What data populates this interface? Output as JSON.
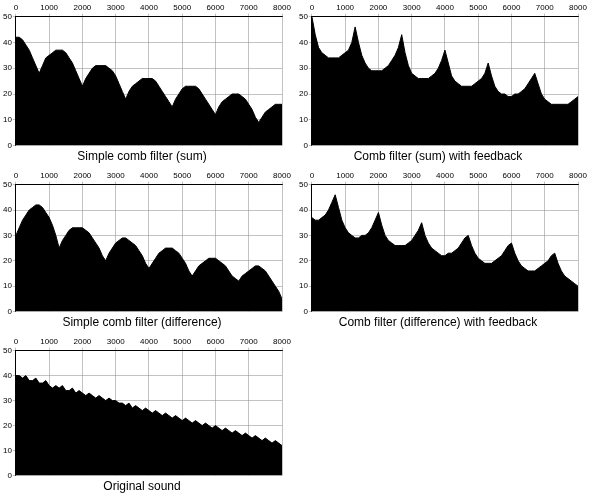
{
  "chart_data": [
    {
      "type": "area",
      "title": "Simple comb filter (sum)",
      "color": "#000000",
      "grid": true,
      "xlim": [
        0,
        8000
      ],
      "xticks": [
        0,
        1000,
        2000,
        3000,
        4000,
        5000,
        6000,
        7000,
        8000
      ],
      "ylim": [
        0,
        50
      ],
      "yticks": [
        0,
        10,
        20,
        30,
        40,
        50
      ],
      "x": [
        0,
        100,
        200,
        300,
        400,
        500,
        600,
        700,
        800,
        900,
        1000,
        1100,
        1200,
        1300,
        1400,
        1500,
        1600,
        1700,
        1800,
        1900,
        2000,
        2100,
        2200,
        2300,
        2400,
        2500,
        2600,
        2700,
        2800,
        2900,
        3000,
        3100,
        3200,
        3300,
        3400,
        3500,
        3600,
        3700,
        3800,
        3900,
        4000,
        4100,
        4200,
        4300,
        4400,
        4500,
        4600,
        4700,
        4800,
        4900,
        5000,
        5100,
        5200,
        5300,
        5400,
        5500,
        5600,
        5700,
        5800,
        5900,
        6000,
        6100,
        6200,
        6300,
        6400,
        6500,
        6600,
        6700,
        6800,
        6900,
        7000,
        7100,
        7200,
        7300,
        7400,
        7500,
        7600,
        7700,
        7800,
        7900,
        8000
      ],
      "values": [
        42,
        42,
        41,
        39,
        37,
        34,
        31,
        28,
        31,
        34,
        35,
        36,
        37,
        37,
        37,
        36,
        34,
        32,
        29,
        26,
        23,
        26,
        28,
        30,
        31,
        31,
        31,
        31,
        30,
        29,
        27,
        24,
        21,
        18,
        21,
        23,
        24,
        25,
        26,
        26,
        26,
        26,
        25,
        23,
        21,
        19,
        17,
        15,
        18,
        20,
        22,
        23,
        23,
        23,
        23,
        22,
        20,
        18,
        16,
        14,
        12,
        15,
        17,
        18,
        19,
        20,
        20,
        20,
        19,
        18,
        16,
        14,
        11,
        9,
        11,
        13,
        14,
        15,
        16,
        16,
        16
      ]
    },
    {
      "type": "area",
      "title": "Comb filter (sum) with feedback",
      "color": "#000000",
      "grid": true,
      "xlim": [
        0,
        8000
      ],
      "xticks": [
        0,
        1000,
        2000,
        3000,
        4000,
        5000,
        6000,
        7000,
        8000
      ],
      "ylim": [
        0,
        50
      ],
      "yticks": [
        0,
        10,
        20,
        30,
        40,
        50
      ],
      "x": [
        0,
        100,
        200,
        300,
        400,
        500,
        600,
        700,
        800,
        900,
        1000,
        1100,
        1200,
        1300,
        1400,
        1500,
        1600,
        1700,
        1800,
        1900,
        2000,
        2100,
        2200,
        2300,
        2400,
        2500,
        2600,
        2700,
        2800,
        2900,
        3000,
        3100,
        3200,
        3300,
        3400,
        3500,
        3600,
        3700,
        3800,
        3900,
        4000,
        4100,
        4200,
        4300,
        4400,
        4500,
        4600,
        4700,
        4800,
        4900,
        5000,
        5100,
        5200,
        5300,
        5400,
        5500,
        5600,
        5700,
        5800,
        5900,
        6000,
        6100,
        6200,
        6300,
        6400,
        6500,
        6600,
        6700,
        6800,
        6900,
        7000,
        7100,
        7200,
        7300,
        7400,
        7500,
        7600,
        7700,
        7800,
        7900,
        8000
      ],
      "values": [
        50,
        43,
        38,
        36,
        35,
        34,
        34,
        34,
        34,
        35,
        36,
        37,
        40,
        46,
        40,
        35,
        32,
        30,
        29,
        29,
        29,
        29,
        30,
        31,
        33,
        35,
        38,
        43,
        36,
        31,
        28,
        27,
        26,
        26,
        26,
        26,
        27,
        28,
        30,
        33,
        37,
        32,
        27,
        25,
        24,
        23,
        23,
        23,
        23,
        24,
        25,
        26,
        28,
        32,
        27,
        23,
        21,
        20,
        20,
        19,
        19,
        20,
        20,
        21,
        22,
        24,
        26,
        28,
        24,
        20,
        18,
        17,
        16,
        16,
        16,
        16,
        16,
        16,
        17,
        18,
        19
      ]
    },
    {
      "type": "area",
      "title": "Simple comb filter (difference)",
      "color": "#000000",
      "grid": true,
      "xlim": [
        0,
        8000
      ],
      "xticks": [
        0,
        1000,
        2000,
        3000,
        4000,
        5000,
        6000,
        7000,
        8000
      ],
      "ylim": [
        0,
        50
      ],
      "yticks": [
        0,
        10,
        20,
        30,
        40,
        50
      ],
      "x": [
        0,
        100,
        200,
        300,
        400,
        500,
        600,
        700,
        800,
        900,
        1000,
        1100,
        1200,
        1300,
        1400,
        1500,
        1600,
        1700,
        1800,
        1900,
        2000,
        2100,
        2200,
        2300,
        2400,
        2500,
        2600,
        2700,
        2800,
        2900,
        3000,
        3100,
        3200,
        3300,
        3400,
        3500,
        3600,
        3700,
        3800,
        3900,
        4000,
        4100,
        4200,
        4300,
        4400,
        4500,
        4600,
        4700,
        4800,
        4900,
        5000,
        5100,
        5200,
        5300,
        5400,
        5500,
        5600,
        5700,
        5800,
        5900,
        6000,
        6100,
        6200,
        6300,
        6400,
        6500,
        6600,
        6700,
        6800,
        6900,
        7000,
        7100,
        7200,
        7300,
        7400,
        7500,
        7600,
        7700,
        7800,
        7900,
        8000
      ],
      "values": [
        30,
        33,
        36,
        38,
        40,
        41,
        42,
        42,
        41,
        39,
        37,
        34,
        30,
        25,
        28,
        30,
        32,
        33,
        33,
        33,
        33,
        32,
        31,
        29,
        27,
        25,
        22,
        20,
        23,
        25,
        27,
        28,
        29,
        29,
        28,
        27,
        26,
        24,
        22,
        19,
        17,
        19,
        21,
        23,
        24,
        25,
        25,
        25,
        24,
        23,
        21,
        19,
        16,
        14,
        16,
        18,
        19,
        20,
        21,
        21,
        21,
        20,
        19,
        18,
        16,
        14,
        13,
        12,
        14,
        15,
        16,
        17,
        18,
        18,
        17,
        16,
        14,
        12,
        10,
        8,
        5
      ]
    },
    {
      "type": "area",
      "title": "Comb filter (difference) with feedback",
      "color": "#000000",
      "grid": true,
      "xlim": [
        0,
        8000
      ],
      "xticks": [
        0,
        1000,
        2000,
        3000,
        4000,
        5000,
        6000,
        7000,
        8000
      ],
      "ylim": [
        0,
        50
      ],
      "yticks": [
        0,
        10,
        20,
        30,
        40,
        50
      ],
      "x": [
        0,
        100,
        200,
        300,
        400,
        500,
        600,
        700,
        800,
        900,
        1000,
        1100,
        1200,
        1300,
        1400,
        1500,
        1600,
        1700,
        1800,
        1900,
        2000,
        2100,
        2200,
        2300,
        2400,
        2500,
        2600,
        2700,
        2800,
        2900,
        3000,
        3100,
        3200,
        3300,
        3400,
        3500,
        3600,
        3700,
        3800,
        3900,
        4000,
        4100,
        4200,
        4300,
        4400,
        4500,
        4600,
        4700,
        4800,
        4900,
        5000,
        5100,
        5200,
        5300,
        5400,
        5500,
        5600,
        5700,
        5800,
        5900,
        6000,
        6100,
        6200,
        6300,
        6400,
        6500,
        6600,
        6700,
        6800,
        6900,
        7000,
        7100,
        7200,
        7300,
        7400,
        7500,
        7600,
        7700,
        7800,
        7900,
        8000
      ],
      "values": [
        37,
        36,
        36,
        37,
        38,
        40,
        43,
        46,
        41,
        36,
        33,
        31,
        30,
        29,
        29,
        30,
        30,
        31,
        33,
        36,
        39,
        34,
        30,
        28,
        27,
        26,
        26,
        26,
        26,
        27,
        28,
        30,
        32,
        35,
        30,
        27,
        25,
        24,
        23,
        22,
        22,
        23,
        23,
        24,
        25,
        27,
        29,
        30,
        26,
        23,
        21,
        20,
        19,
        19,
        19,
        20,
        21,
        22,
        24,
        26,
        27,
        23,
        20,
        18,
        17,
        16,
        16,
        16,
        17,
        18,
        19,
        20,
        22,
        23,
        19,
        16,
        14,
        13,
        12,
        11,
        10
      ]
    },
    {
      "type": "area",
      "title": "Original sound",
      "color": "#000000",
      "grid": true,
      "xlim": [
        0,
        8000
      ],
      "xticks": [
        0,
        1000,
        2000,
        3000,
        4000,
        5000,
        6000,
        7000,
        8000
      ],
      "ylim": [
        0,
        50
      ],
      "yticks": [
        0,
        10,
        20,
        30,
        40,
        50
      ],
      "x": [
        0,
        100,
        200,
        300,
        400,
        500,
        600,
        700,
        800,
        900,
        1000,
        1100,
        1200,
        1300,
        1400,
        1500,
        1600,
        1700,
        1800,
        1900,
        2000,
        2100,
        2200,
        2300,
        2400,
        2500,
        2600,
        2700,
        2800,
        2900,
        3000,
        3100,
        3200,
        3300,
        3400,
        3500,
        3600,
        3700,
        3800,
        3900,
        4000,
        4100,
        4200,
        4300,
        4400,
        4500,
        4600,
        4700,
        4800,
        4900,
        5000,
        5100,
        5200,
        5300,
        5400,
        5500,
        5600,
        5700,
        5800,
        5900,
        6000,
        6100,
        6200,
        6300,
        6400,
        6500,
        6600,
        6700,
        6800,
        6900,
        7000,
        7100,
        7200,
        7300,
        7400,
        7500,
        7600,
        7700,
        7800,
        7900,
        8000
      ],
      "values": [
        40,
        40,
        39,
        40,
        38,
        38,
        39,
        37,
        37,
        38,
        36,
        35,
        36,
        35,
        36,
        34,
        34,
        35,
        33,
        34,
        33,
        32,
        33,
        32,
        31,
        32,
        31,
        30,
        31,
        30,
        30,
        29,
        29,
        28,
        29,
        27,
        28,
        27,
        26,
        27,
        26,
        25,
        26,
        25,
        24,
        25,
        24,
        23,
        24,
        23,
        22,
        23,
        22,
        21,
        22,
        21,
        20,
        21,
        20,
        19,
        20,
        19,
        18,
        19,
        18,
        17,
        18,
        17,
        16,
        17,
        16,
        15,
        16,
        15,
        14,
        15,
        14,
        13,
        14,
        13,
        12
      ]
    }
  ]
}
